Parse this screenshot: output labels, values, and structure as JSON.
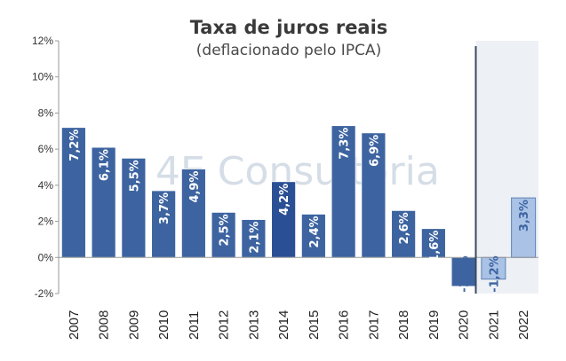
{
  "chart_data": {
    "type": "bar",
    "title": "Taxa de juros reais",
    "subtitle": "(deflacionado pelo IPCA)",
    "watermark": "4E Consultoria",
    "categories": [
      "2007",
      "2008",
      "2009",
      "2010",
      "2011",
      "2012",
      "2013",
      "2014",
      "2015",
      "2016",
      "2017",
      "2018",
      "2019",
      "2020",
      "2021",
      "2022"
    ],
    "values": [
      7.2,
      6.1,
      5.5,
      3.7,
      4.9,
      2.5,
      2.1,
      4.2,
      2.4,
      7.3,
      6.9,
      2.6,
      1.6,
      -1.6,
      -1.2,
      3.3
    ],
    "labels": [
      "7,2%",
      "6,1%",
      "5,5%",
      "3,7%",
      "4,9%",
      "2,5%",
      "2,1%",
      "4,2%",
      "2,4%",
      "7,3%",
      "6,9%",
      "2,6%",
      "1,6%",
      "-1,6%",
      "-1,2%",
      "3,3%"
    ],
    "ylim": [
      -2,
      12
    ],
    "yticks": [
      -2,
      0,
      2,
      4,
      6,
      8,
      10,
      12
    ],
    "ytick_labels": [
      "-2%",
      "0%",
      "2%",
      "4%",
      "6%",
      "8%",
      "10%",
      "12%"
    ],
    "forecast_from": "2021",
    "grid": false,
    "legend": "none",
    "colors": {
      "bar": "#3d64a0",
      "bar_highlight": "#2b4f94",
      "bar_forecast": "#a9c2e6",
      "forecast_bg": "#edf1f6",
      "divider": "#3a4a60",
      "label_light": "#ffffff",
      "label_dark": "#3d64a0"
    }
  }
}
